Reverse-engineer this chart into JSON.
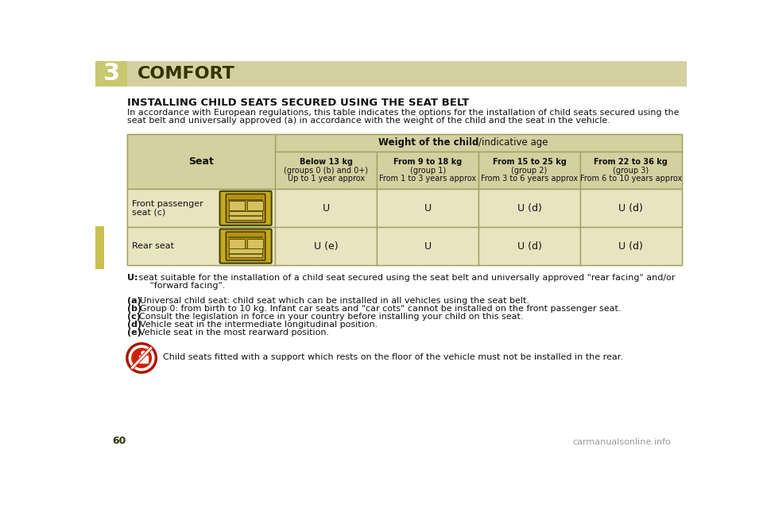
{
  "bg_color": "#ffffff",
  "header_bg": "#d4d0a0",
  "header_number_bg": "#c8c870",
  "chapter_number": "3",
  "chapter_title": "COMFORT",
  "page_number": "60",
  "section_title": "INSTALLING CHILD SEATS SECURED USING THE SEAT BELT",
  "intro_line1": "In accordance with European regulations, this table indicates the options for the installation of child seats secured using the",
  "intro_line2": "seat belt and universally approved (a) in accordance with the weight of the child and the seat in the vehicle.",
  "table_header_bg": "#d4d0a0",
  "table_row_bg": "#e8e4c0",
  "table_border": "#a0a060",
  "weight_header_bold": "Weight of the child",
  "weight_header_normal": "/indicative age",
  "col_headers": [
    [
      "Below 13 kg",
      "(groups 0 (b) and 0+)",
      "Up to 1 year approx"
    ],
    [
      "From 9 to 18 kg",
      "(group 1)",
      "From 1 to 3 years approx"
    ],
    [
      "From 15 to 25 kg",
      "(group 2)",
      "From 3 to 6 years approx"
    ],
    [
      "From 22 to 36 kg",
      "(group 3)",
      "From 6 to 10 years approx"
    ]
  ],
  "row1_label": [
    "Front passenger",
    "seat (c)"
  ],
  "row2_label": [
    "Rear seat"
  ],
  "row1_values": [
    "U",
    "U",
    "U (d)",
    "U (d)"
  ],
  "row2_values": [
    "U (e)",
    "U",
    "U (d)",
    "U (d)"
  ],
  "legend_u_line1": " seat suitable for the installation of a child seat secured using the seat belt and universally approved \"rear facing\" and/or",
  "legend_u_line2": "     \"forward facing\".",
  "notes": [
    [
      "(a) ",
      "Universal child seat: child seat which can be installed in all vehicles using the seat belt."
    ],
    [
      "(b) ",
      "Group 0: from birth to 10 kg. Infant car seats and \"car cots\" cannot be installed on the front passenger seat."
    ],
    [
      "(c) ",
      "Consult the legislation in force in your country before installing your child on this seat."
    ],
    [
      "(d) ",
      "Vehicle seat in the intermediate longitudinal position."
    ],
    [
      "(e) ",
      "Vehicle seat in the most rearward position."
    ]
  ],
  "warning_text": "Child seats fitted with a support which rests on the floor of the vehicle must not be installed in the rear.",
  "watermark": "carmanualsonline.info",
  "tab_color": "#c8c050"
}
